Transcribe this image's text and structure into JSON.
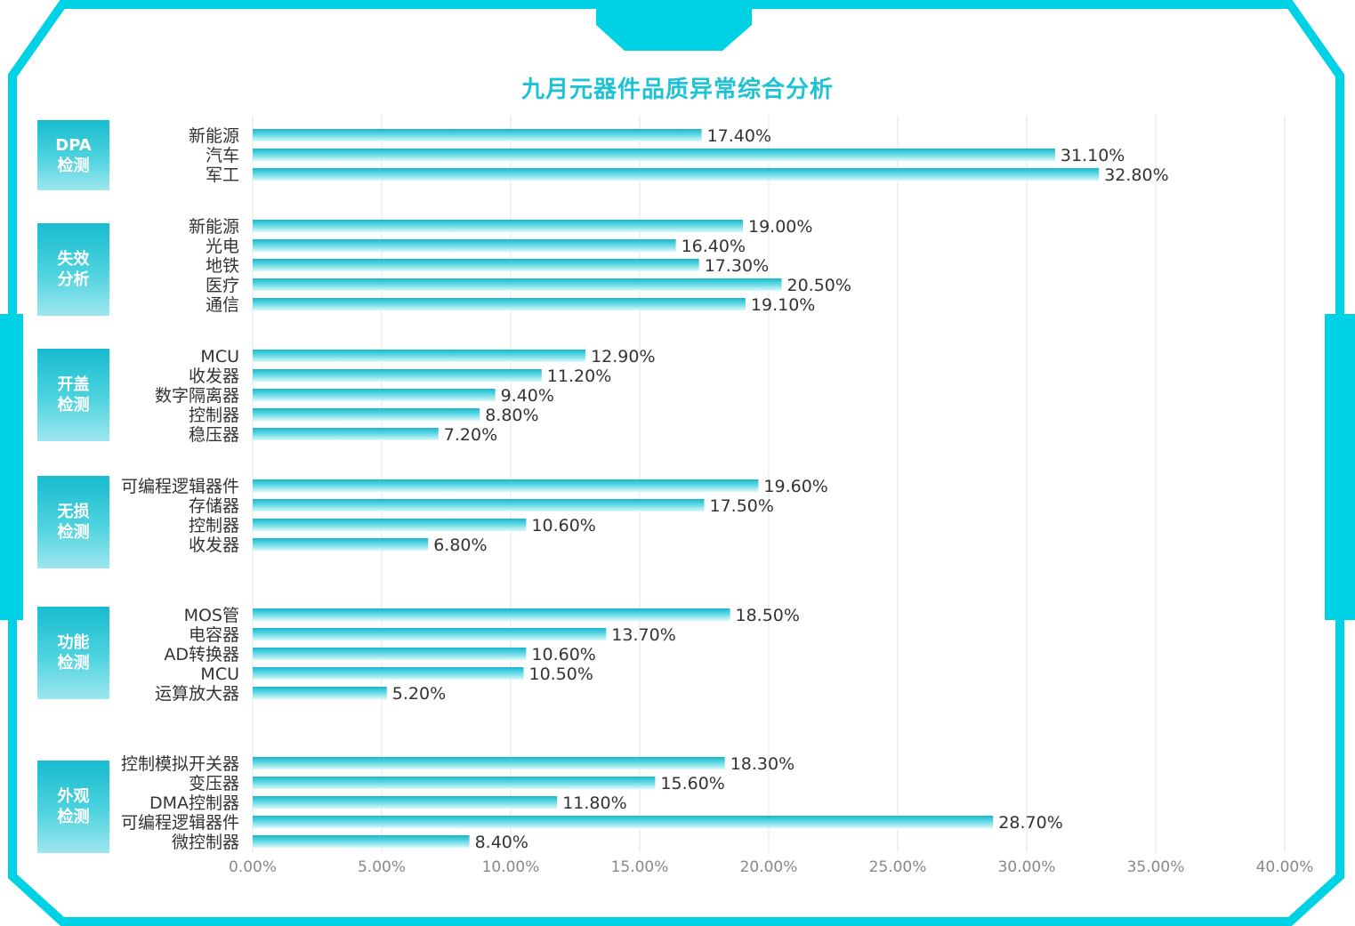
{
  "colors": {
    "frame": "#00d2e6",
    "title": "#1cc3d4",
    "bar_top": "#17b6cc",
    "bar_mid": "#5fd8e4",
    "bar_light": "#d9f8fb",
    "grid": "#e6e6e6",
    "tick": "#888888",
    "label": "#333333"
  },
  "chart_data": {
    "type": "bar",
    "orientation": "horizontal",
    "title": "九月元器件品质异常综合分析",
    "xlim": [
      0,
      40
    ],
    "xticks": [
      0,
      5,
      10,
      15,
      20,
      25,
      30,
      35,
      40
    ],
    "xtick_labels": [
      "0.00%",
      "5.00%",
      "10.00%",
      "15.00%",
      "20.00%",
      "25.00%",
      "30.00%",
      "35.00%",
      "40.00%"
    ],
    "grid": true,
    "groups": [
      {
        "name": "DPA\n检测",
        "items": [
          {
            "label": "新能源",
            "value": 17.4,
            "value_label": "17.40%"
          },
          {
            "label": "汽车",
            "value": 31.1,
            "value_label": "31.10%"
          },
          {
            "label": "军工",
            "value": 32.8,
            "value_label": "32.80%"
          }
        ]
      },
      {
        "name": "失效\n分析",
        "items": [
          {
            "label": "新能源",
            "value": 19.0,
            "value_label": "19.00%"
          },
          {
            "label": "光电",
            "value": 16.4,
            "value_label": "16.40%"
          },
          {
            "label": "地铁",
            "value": 17.3,
            "value_label": "17.30%"
          },
          {
            "label": "医疗",
            "value": 20.5,
            "value_label": "20.50%"
          },
          {
            "label": "通信",
            "value": 19.1,
            "value_label": "19.10%"
          }
        ]
      },
      {
        "name": "开盖\n检测",
        "items": [
          {
            "label": "MCU",
            "value": 12.9,
            "value_label": "12.90%"
          },
          {
            "label": "收发器",
            "value": 11.2,
            "value_label": "11.20%"
          },
          {
            "label": "数字隔离器",
            "value": 9.4,
            "value_label": "9.40%"
          },
          {
            "label": "控制器",
            "value": 8.8,
            "value_label": "8.80%"
          },
          {
            "label": "稳压器",
            "value": 7.2,
            "value_label": "7.20%"
          }
        ]
      },
      {
        "name": "无损\n检测",
        "items": [
          {
            "label": "可编程逻辑器件",
            "value": 19.6,
            "value_label": "19.60%"
          },
          {
            "label": "存储器",
            "value": 17.5,
            "value_label": "17.50%"
          },
          {
            "label": "控制器",
            "value": 10.6,
            "value_label": "10.60%"
          },
          {
            "label": "收发器",
            "value": 6.8,
            "value_label": "6.80%"
          }
        ]
      },
      {
        "name": "功能\n检测",
        "items": [
          {
            "label": "MOS管",
            "value": 18.5,
            "value_label": "18.50%"
          },
          {
            "label": "电容器",
            "value": 13.7,
            "value_label": "13.70%"
          },
          {
            "label": "AD转换器",
            "value": 10.6,
            "value_label": "10.60%"
          },
          {
            "label": "MCU",
            "value": 10.5,
            "value_label": "10.50%"
          },
          {
            "label": "运算放大器",
            "value": 5.2,
            "value_label": "5.20%"
          }
        ]
      },
      {
        "name": "外观\n检测",
        "items": [
          {
            "label": "控制模拟开关器",
            "value": 18.3,
            "value_label": "18.30%"
          },
          {
            "label": "变压器",
            "value": 15.6,
            "value_label": "15.60%"
          },
          {
            "label": "DMA控制器",
            "value": 11.8,
            "value_label": "11.80%"
          },
          {
            "label": "可编程逻辑器件",
            "value": 28.7,
            "value_label": "28.70%"
          },
          {
            "label": "微控制器",
            "value": 8.4,
            "value_label": "8.40%"
          }
        ]
      }
    ]
  }
}
